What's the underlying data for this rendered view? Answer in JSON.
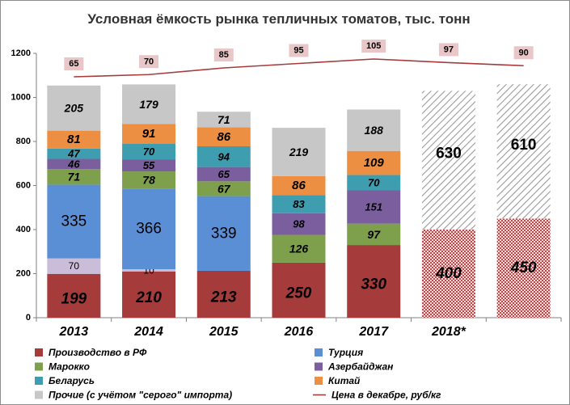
{
  "chart_data": {
    "type": "bar",
    "stacked": true,
    "title": "Условная ёмкость рынка тепличных томатов, тыс. тонн",
    "categories": [
      "2013",
      "2014",
      "2015",
      "2016",
      "2017",
      "2018*",
      ""
    ],
    "ylim": [
      0,
      1200
    ],
    "yticks": [
      "0",
      "200",
      "400",
      "600",
      "800",
      "1000",
      "1200"
    ],
    "grid": false,
    "legend_position": "bottom",
    "series": [
      {
        "key": "rf",
        "name": "Производство в РФ",
        "color": "#a53b3b",
        "values": [
          199,
          210,
          213,
          250,
          330,
          null,
          null
        ],
        "labels": [
          "199",
          "210",
          "213",
          "250",
          "330",
          "",
          ""
        ]
      },
      {
        "key": "tr",
        "name": "Турция",
        "color": "#5a8fd6",
        "values": [
          335,
          366,
          339,
          0,
          0,
          null,
          null
        ],
        "labels": [
          "335",
          "366",
          "339",
          "",
          "",
          "",
          ""
        ]
      },
      {
        "key": "ma",
        "name": "Марокко",
        "color": "#7ea04d",
        "values": [
          71,
          78,
          67,
          126,
          97,
          null,
          null
        ],
        "labels": [
          "71",
          "78",
          "67",
          "126",
          "97",
          "",
          ""
        ]
      },
      {
        "key": "az",
        "name": "Азербайджан",
        "color": "#7b5e9e",
        "values": [
          46,
          55,
          65,
          98,
          151,
          null,
          null
        ],
        "labels": [
          "46",
          "55",
          "65",
          "98",
          "151",
          "",
          ""
        ]
      },
      {
        "key": "by",
        "name": "Беларусь",
        "color": "#3f9db0",
        "values": [
          47,
          70,
          94,
          83,
          70,
          null,
          null
        ],
        "labels": [
          "47",
          "70",
          "94",
          "83",
          "70",
          "",
          ""
        ]
      },
      {
        "key": "cn",
        "name": "Китай",
        "color": "#ec8f42",
        "values": [
          81,
          91,
          86,
          86,
          109,
          null,
          null
        ],
        "labels": [
          "81",
          "91",
          "86",
          "86",
          "109",
          "",
          ""
        ]
      },
      {
        "key": "ot",
        "name": "Прочие (с учётом \"серого\" импорта)",
        "color": "#c7c7c7",
        "values": [
          205,
          179,
          71,
          219,
          188,
          null,
          null
        ],
        "labels": [
          "205",
          "179",
          "71",
          "219",
          "188",
          "",
          ""
        ]
      }
    ],
    "extra_segments_below_turkey": {
      "values": [
        70,
        10,
        0,
        0,
        0,
        null,
        null
      ],
      "labels": [
        "70",
        "10",
        "",
        "",
        "",
        "",
        ""
      ],
      "color": "#c9bdd9"
    },
    "forecast": {
      "rf_values": [
        null,
        null,
        null,
        null,
        null,
        400,
        450
      ],
      "rf_labels": [
        "",
        "",
        "",
        "",
        "",
        "400",
        "450"
      ],
      "other_values": [
        null,
        null,
        null,
        null,
        null,
        630,
        610
      ],
      "other_labels": [
        "",
        "",
        "",
        "",
        "",
        "630",
        "610"
      ]
    },
    "price_line": {
      "name": "Цена в декабре, руб/кг",
      "color": "#a53b3b",
      "values": [
        65,
        70,
        85,
        95,
        105,
        97,
        90
      ],
      "labels": [
        "65",
        "70",
        "85",
        "95",
        "105",
        "97",
        "90"
      ]
    }
  }
}
